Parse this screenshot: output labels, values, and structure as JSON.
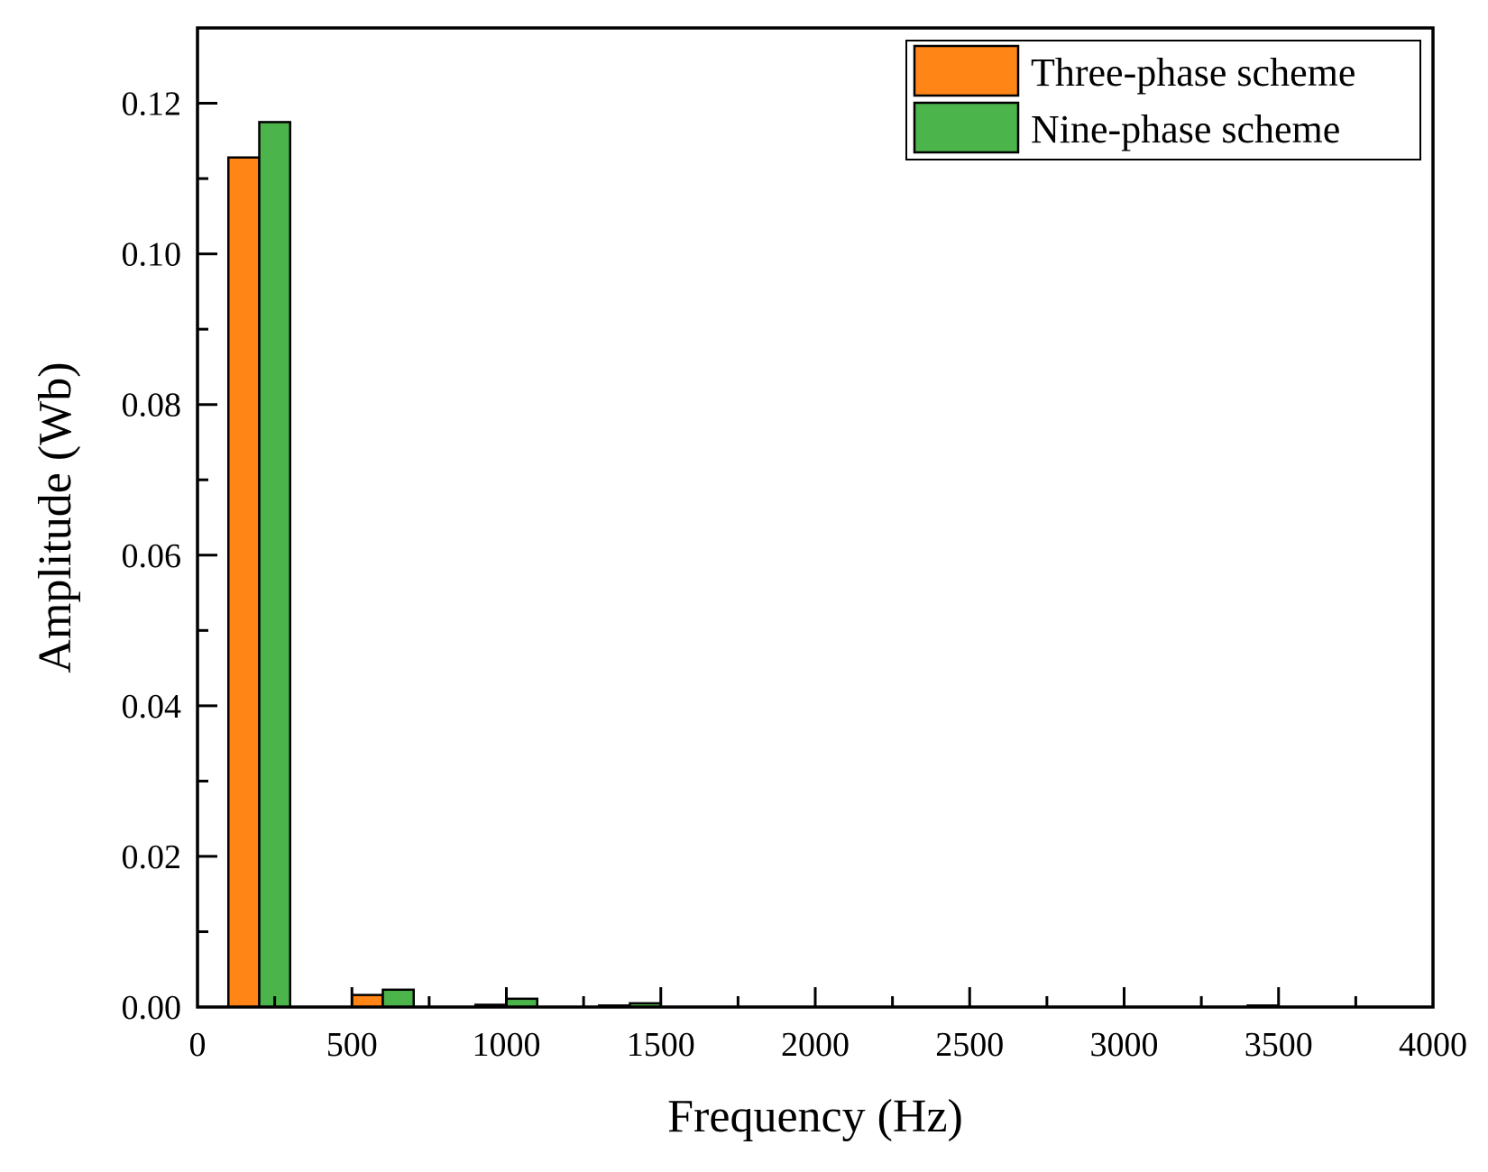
{
  "chart_data": {
    "type": "bar",
    "title": "",
    "xlabel": "Frequency (Hz)",
    "ylabel": "Amplitude (Wb)",
    "xlim": [
      0,
      4000
    ],
    "ylim": [
      0,
      0.13
    ],
    "x_ticks": [
      0,
      500,
      1000,
      1500,
      2000,
      2500,
      3000,
      3500,
      4000
    ],
    "x_tick_labels": [
      "0",
      "500",
      "1000",
      "1500",
      "2000",
      "2500",
      "3000",
      "3500",
      "4000"
    ],
    "y_ticks": [
      0,
      0.02,
      0.04,
      0.06,
      0.08,
      0.1,
      0.12
    ],
    "y_tick_labels": [
      "0.00",
      "0.02",
      "0.04",
      "0.06",
      "0.08",
      "0.10",
      "0.12"
    ],
    "grid": false,
    "legend_position": "top-right",
    "bar_width_hz": 100,
    "series": [
      {
        "name": "Three-phase scheme",
        "color": "#ff8517",
        "x": [
          150,
          550,
          950,
          1350
        ],
        "values": [
          0.1128,
          0.0016,
          0.0003,
          0.0002
        ]
      },
      {
        "name": "Nine-phase scheme",
        "color": "#4bb44b",
        "x": [
          250,
          650,
          1050,
          1450,
          3450
        ],
        "values": [
          0.1175,
          0.0023,
          0.0011,
          0.0005,
          0.0002
        ]
      }
    ]
  }
}
